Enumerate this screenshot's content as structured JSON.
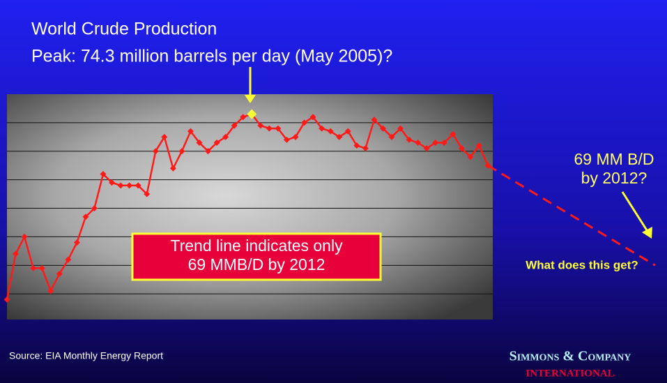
{
  "chart_data": {
    "type": "line",
    "title": "World Crude Production",
    "subtitle": "Peak:  74.3 million barrels per day (May 2005)?",
    "values": [
      67.8,
      69.4,
      70.0,
      68.9,
      68.9,
      68.1,
      68.7,
      69.2,
      69.8,
      70.7,
      71.0,
      72.2,
      71.9,
      71.8,
      71.8,
      71.8,
      71.5,
      73.0,
      73.5,
      72.4,
      73.0,
      73.7,
      73.3,
      73.0,
      73.3,
      73.5,
      73.9,
      74.2,
      74.3,
      73.9,
      73.8,
      73.8,
      73.4,
      73.5,
      74.0,
      74.2,
      73.8,
      73.7,
      73.5,
      73.7,
      73.2,
      73.1,
      74.1,
      73.8,
      73.5,
      73.8,
      73.4,
      73.3,
      73.1,
      73.3,
      73.3,
      73.6,
      73.1,
      72.8,
      73.2,
      72.5
    ],
    "color": "#ff1a1a",
    "peak_color": "#ffff33",
    "trend_end": 69,
    "ylim": [
      67.1,
      75
    ],
    "yticks": [
      68,
      69,
      70,
      71,
      72,
      73,
      74
    ],
    "grid": true,
    "box_note": [
      "Trend line indicates only",
      "69 MMB/D by 2012"
    ],
    "side_note": [
      "69 MM B/D",
      "by 2012?"
    ],
    "question": "What does this get?",
    "source": "Source:  EIA Monthly Energy Report",
    "logo": [
      "Simmons & Company",
      "INTERNATIONAL"
    ]
  }
}
